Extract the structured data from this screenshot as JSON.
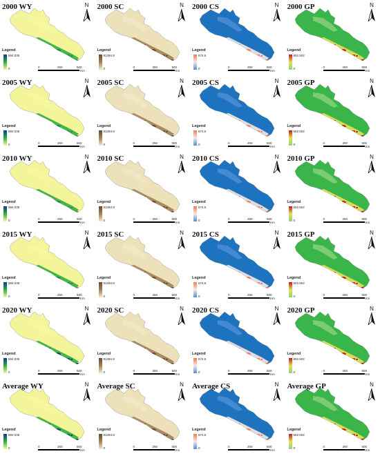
{
  "rows": [
    {
      "year": "2000",
      "panels": [
        {
          "title": "2000 WY",
          "kind": "WY",
          "legend_title": "Legend",
          "max": "594.035",
          "min": "0"
        },
        {
          "title": "2000 SC",
          "kind": "SC",
          "legend_title": "Legend",
          "max": "81394.9",
          "min": "0"
        },
        {
          "title": "2000 CS",
          "kind": "CS",
          "legend_title": "Legend",
          "max": "674.5",
          "min": "0"
        },
        {
          "title": "2000 GP",
          "kind": "GP",
          "legend_title": "Legend",
          "max": "602.502",
          "min": "0"
        }
      ]
    },
    {
      "year": "2005",
      "panels": [
        {
          "title": "2005 WY",
          "kind": "WY",
          "legend_title": "Legend",
          "max": "594.035",
          "min": "0"
        },
        {
          "title": "2005 SC",
          "kind": "SC",
          "legend_title": "Legend",
          "max": "81394.9",
          "min": "0"
        },
        {
          "title": "2005 CS",
          "kind": "CS",
          "legend_title": "Legend",
          "max": "674.5",
          "min": "0"
        },
        {
          "title": "2005 GP",
          "kind": "GP",
          "legend_title": "Legend",
          "max": "602.502",
          "min": "0"
        }
      ]
    },
    {
      "year": "2010",
      "panels": [
        {
          "title": "2010 WY",
          "kind": "WY",
          "legend_title": "Legend",
          "max": "594.035",
          "min": "0"
        },
        {
          "title": "2010 SC",
          "kind": "SC",
          "legend_title": "Legend",
          "max": "81394.9",
          "min": "0"
        },
        {
          "title": "2010 CS",
          "kind": "CS",
          "legend_title": "Legend",
          "max": "674.5",
          "min": "0"
        },
        {
          "title": "2010 GP",
          "kind": "GP",
          "legend_title": "Legend",
          "max": "602.502",
          "min": "0"
        }
      ]
    },
    {
      "year": "2015",
      "panels": [
        {
          "title": "2015 WY",
          "kind": "WY",
          "legend_title": "Legend",
          "max": "594.035",
          "min": "0"
        },
        {
          "title": "2015 SC",
          "kind": "SC",
          "legend_title": "Legend",
          "max": "81394.9",
          "min": "0"
        },
        {
          "title": "2015 CS",
          "kind": "CS",
          "legend_title": "Legend",
          "max": "674.5",
          "min": "0"
        },
        {
          "title": "2015 GP",
          "kind": "GP",
          "legend_title": "Legend",
          "max": "602.502",
          "min": "0"
        }
      ]
    },
    {
      "year": "2020",
      "panels": [
        {
          "title": "2020 WY",
          "kind": "WY",
          "legend_title": "Legend",
          "max": "594.035",
          "min": "0"
        },
        {
          "title": "2020 SC",
          "kind": "SC",
          "legend_title": "Legend",
          "max": "81394.9",
          "min": "0"
        },
        {
          "title": "2020 CS",
          "kind": "CS",
          "legend_title": "Legend",
          "max": "674.5",
          "min": "0"
        },
        {
          "title": "2020 GP",
          "kind": "GP",
          "legend_title": "Legend",
          "max": "602.502",
          "min": "0"
        }
      ]
    },
    {
      "year": "Average",
      "panels": [
        {
          "title": "Average WY",
          "kind": "WY",
          "legend_title": "Legend",
          "max": "594.035",
          "min": "0"
        },
        {
          "title": "Average SC",
          "kind": "SC",
          "legend_title": "Legend",
          "max": "81394.9",
          "min": "0"
        },
        {
          "title": "Average CS",
          "kind": "CS",
          "legend_title": "Legend",
          "max": "674.5",
          "min": "0"
        },
        {
          "title": "Average GP",
          "kind": "GP",
          "legend_title": "Legend",
          "max": "602.502",
          "min": "0"
        }
      ]
    }
  ],
  "north_label": "N",
  "scale": {
    "ticks": [
      "0",
      "250",
      "500"
    ],
    "unit": "Km"
  },
  "palettes": {
    "WY": {
      "base": "#f4f59b",
      "low": "#f7f8a0",
      "high": "#0f3a8c",
      "mid": "#2fb13a"
    },
    "SC": {
      "base": "#ece1b8",
      "low": "#f2e9c9",
      "high": "#6a4a2a",
      "mid": "#a2825a"
    },
    "CS": {
      "base": "#1e73be",
      "low": "#4f8fd4",
      "high": "#f07a54",
      "mid": "#f4e9e4"
    },
    "GP": {
      "base": "#39b54a",
      "low": "#8fd27a",
      "high": "#c41818",
      "mid": "#e8e05a"
    }
  }
}
